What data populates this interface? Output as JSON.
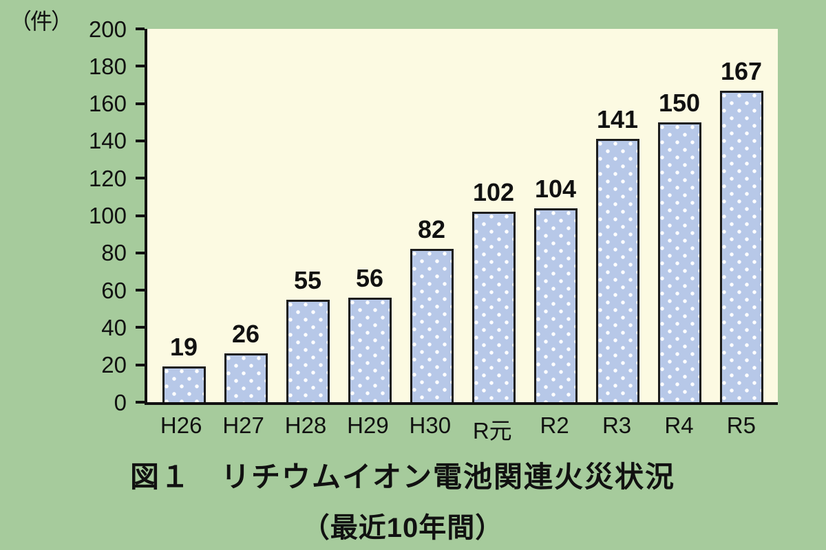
{
  "chart_data": {
    "type": "bar",
    "categories": [
      "H26",
      "H27",
      "H28",
      "H29",
      "H30",
      "R元",
      "R2",
      "R3",
      "R4",
      "R5"
    ],
    "values": [
      19,
      26,
      55,
      56,
      82,
      102,
      104,
      141,
      150,
      167
    ],
    "title": "図１　リチウムイオン電池関連火災状況",
    "subtitle": "（最近10年間）",
    "unit_label": "（件）",
    "xlabel": "",
    "ylabel": "件",
    "ylim": [
      0,
      200
    ],
    "ytick_step": 20,
    "grid": false,
    "legend": "none",
    "colors": {
      "page_bg": "#a6cb9c",
      "plot_bg": "#fcfae2",
      "bar_fill": "#b7c8e8",
      "bar_dot": "#ffffff",
      "bar_border": "#1c1c1c",
      "axis": "#111111",
      "text": "#111111"
    }
  }
}
